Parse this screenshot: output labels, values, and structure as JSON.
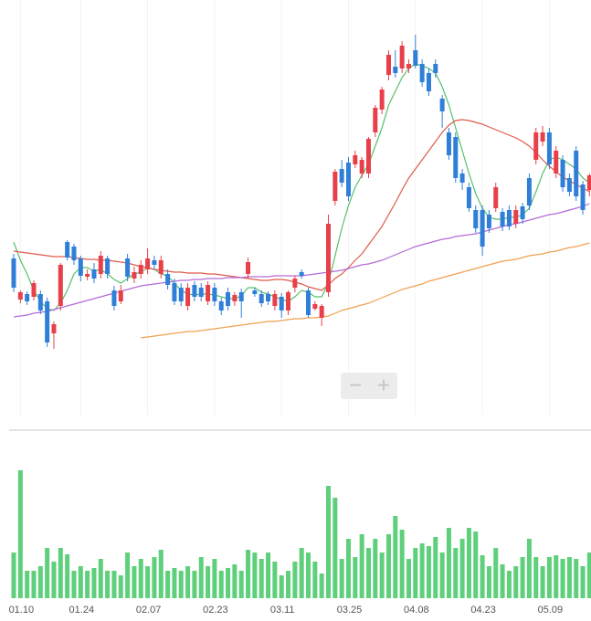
{
  "chart_data": {
    "type": "candlestick",
    "categories": [
      null,
      "01.10",
      null,
      null,
      null,
      null,
      null,
      null,
      null,
      null,
      "01.24",
      null,
      null,
      null,
      null,
      null,
      null,
      null,
      null,
      null,
      "02.07",
      null,
      null,
      null,
      null,
      null,
      null,
      null,
      null,
      null,
      "02.23",
      null,
      null,
      null,
      null,
      null,
      null,
      null,
      null,
      null,
      "03.11",
      null,
      null,
      null,
      null,
      null,
      null,
      null,
      null,
      null,
      "03.25",
      null,
      null,
      null,
      null,
      null,
      null,
      null,
      null,
      null,
      "04.08",
      null,
      null,
      null,
      null,
      null,
      null,
      null,
      null,
      null,
      "04.23",
      null,
      null,
      null,
      null,
      null,
      null,
      null,
      null,
      null,
      "05.09",
      null,
      null,
      null,
      null,
      null,
      null
    ],
    "open": [
      177,
      132,
      138,
      135,
      138,
      130,
      95,
      125,
      195,
      190,
      177,
      157,
      165,
      160,
      177,
      142,
      130,
      177,
      155,
      160,
      165,
      175,
      160,
      160,
      150,
      145,
      125,
      148,
      145,
      130,
      145,
      130,
      140,
      130,
      140,
      160,
      142,
      138,
      138,
      125,
      135,
      120,
      145,
      162,
      142,
      122,
      112,
      140,
      240,
      275,
      282,
      280,
      270,
      270,
      315,
      340,
      378,
      387,
      385,
      385,
      405,
      390,
      380,
      390,
      352,
      315,
      310,
      270,
      255,
      230,
      230,
      225,
      232,
      228,
      230,
      215,
      234,
      265,
      285,
      305,
      315,
      270,
      285,
      265,
      295,
      258,
      252
    ],
    "high": [
      182,
      142,
      141,
      153,
      142,
      134,
      108,
      172,
      197,
      193,
      180,
      165,
      172,
      185,
      180,
      147,
      148,
      182,
      168,
      175,
      188,
      180,
      180,
      165,
      155,
      150,
      150,
      152,
      150,
      152,
      150,
      134,
      145,
      140,
      144,
      178,
      145,
      142,
      141,
      142,
      139,
      142,
      158,
      165,
      145,
      130,
      127,
      225,
      275,
      285,
      288,
      295,
      288,
      310,
      345,
      365,
      405,
      405,
      415,
      395,
      422,
      395,
      385,
      395,
      356,
      320,
      315,
      275,
      260,
      235,
      235,
      230,
      260,
      232,
      235,
      235,
      238,
      270,
      320,
      322,
      320,
      300,
      290,
      270,
      300,
      262,
      270
    ],
    "low": [
      140,
      128,
      126,
      131,
      116,
      80,
      78,
      120,
      175,
      170,
      152,
      153,
      150,
      155,
      155,
      120,
      127,
      152,
      150,
      155,
      160,
      165,
      155,
      143,
      126,
      125,
      120,
      130,
      130,
      126,
      125,
      115,
      120,
      125,
      112,
      155,
      135,
      124,
      126,
      120,
      112,
      115,
      140,
      155,
      112,
      120,
      103,
      135,
      235,
      255,
      240,
      276,
      265,
      265,
      310,
      335,
      372,
      375,
      380,
      380,
      385,
      365,
      355,
      375,
      320,
      285,
      260,
      252,
      228,
      205,
      180,
      205,
      228,
      207,
      208,
      210,
      215,
      230,
      280,
      300,
      275,
      265,
      250,
      245,
      240,
      225,
      245
    ],
    "close": [
      145,
      140,
      130,
      150,
      120,
      85,
      105,
      170,
      178,
      175,
      158,
      160,
      155,
      180,
      160,
      125,
      142,
      157,
      162,
      170,
      177,
      170,
      175,
      148,
      130,
      130,
      145,
      135,
      135,
      148,
      130,
      120,
      125,
      137,
      130,
      173,
      138,
      128,
      130,
      138,
      120,
      140,
      155,
      158,
      115,
      127,
      125,
      215,
      272,
      260,
      245,
      290,
      285,
      308,
      342,
      362,
      400,
      380,
      410,
      390,
      388,
      370,
      360,
      380,
      338,
      290,
      265,
      260,
      232,
      210,
      190,
      210,
      255,
      212,
      212,
      230,
      220,
      235,
      315,
      315,
      280,
      295,
      255,
      250,
      245,
      230,
      268
    ],
    "up_color": "#e8404a",
    "down_color": "#2f7fd8",
    "ylim": [
      0,
      460
    ],
    "grid": true,
    "lines": [
      {
        "color": "#55c16b",
        "values": [
          195,
          175,
          160,
          142,
          130,
          122,
          120,
          128,
          142,
          160,
          167,
          167,
          163,
          165,
          160,
          154,
          150,
          155,
          160,
          162,
          167,
          165,
          160,
          158,
          150,
          142,
          138,
          137,
          138,
          138,
          137,
          135,
          133,
          133,
          136,
          145,
          145,
          140,
          138,
          135,
          132,
          130,
          135,
          142,
          140,
          135,
          135,
          150,
          180,
          210,
          235,
          255,
          268,
          280,
          300,
          320,
          345,
          360,
          375,
          385,
          390,
          388,
          385,
          380,
          365,
          345,
          320,
          295,
          270,
          248,
          232,
          222,
          220,
          220,
          222,
          222,
          225,
          232,
          250,
          270,
          285,
          288,
          285,
          280,
          275,
          265,
          260
        ]
      },
      {
        "color": "#e05a4a",
        "values": [
          185,
          184,
          183,
          182,
          181,
          180,
          179,
          179,
          179,
          178,
          177,
          176,
          176,
          175,
          175,
          174,
          173,
          172,
          170,
          168,
          167,
          165,
          164,
          163,
          162,
          162,
          161,
          161,
          161,
          160,
          160,
          159,
          158,
          157,
          156,
          155,
          154,
          153,
          153,
          154,
          154,
          153,
          151,
          149,
          146,
          144,
          142,
          148,
          155,
          160,
          167,
          175,
          182,
          192,
          202,
          212,
          225,
          238,
          252,
          265,
          275,
          285,
          295,
          305,
          315,
          323,
          328,
          329,
          328,
          326,
          324,
          321,
          318,
          315,
          312,
          309,
          305,
          300,
          293,
          285,
          278,
          272,
          266,
          262,
          258,
          254,
          250
        ]
      },
      {
        "color": "#b46bd8",
        "values": [
          113,
          114,
          115,
          117,
          118,
          119,
          121,
          123,
          125,
          127,
          129,
          131,
          133,
          135,
          137,
          139,
          141,
          143,
          145,
          147,
          148,
          149,
          150,
          151,
          152,
          153,
          153,
          154,
          154,
          155,
          155,
          155,
          156,
          156,
          156,
          157,
          157,
          157,
          157,
          158,
          158,
          158,
          158,
          158,
          159,
          160,
          161,
          162,
          163,
          164,
          166,
          168,
          170,
          171,
          173,
          175,
          178,
          181,
          184,
          187,
          190,
          192,
          194,
          196,
          198,
          199,
          201,
          202,
          203,
          204,
          206,
          208,
          210,
          212,
          214,
          215,
          217,
          219,
          221,
          223,
          225,
          226,
          228,
          230,
          232,
          234,
          237
        ]
      },
      {
        "color": "#f0a050",
        "values": [
          null,
          null,
          null,
          null,
          null,
          null,
          null,
          null,
          null,
          null,
          null,
          null,
          null,
          null,
          null,
          null,
          null,
          null,
          null,
          90,
          91,
          92,
          93,
          94,
          95,
          96,
          97,
          97,
          98,
          99,
          100,
          101,
          102,
          103,
          104,
          105,
          106,
          107,
          108,
          108,
          109,
          110,
          111,
          111,
          112,
          112,
          113,
          114,
          117,
          120,
          122,
          124,
          126,
          128,
          131,
          134,
          137,
          140,
          143,
          145,
          147,
          149,
          152,
          154,
          156,
          158,
          160,
          162,
          164,
          166,
          168,
          170,
          172,
          174,
          175,
          176,
          178,
          180,
          181,
          182,
          184,
          185,
          187,
          189,
          190,
          192,
          194
        ]
      }
    ],
    "volume": {
      "color": "#5ecf7a",
      "ylim": [
        0,
        185
      ],
      "values": [
        50,
        140,
        30,
        30,
        35,
        55,
        40,
        55,
        48,
        30,
        35,
        30,
        33,
        43,
        30,
        30,
        25,
        50,
        35,
        43,
        35,
        45,
        53,
        30,
        33,
        30,
        35,
        30,
        45,
        35,
        43,
        30,
        33,
        37,
        30,
        53,
        50,
        43,
        50,
        40,
        25,
        30,
        40,
        55,
        50,
        40,
        27,
        123,
        110,
        43,
        65,
        45,
        70,
        55,
        65,
        50,
        70,
        90,
        75,
        43,
        55,
        60,
        57,
        67,
        50,
        77,
        55,
        65,
        77,
        73,
        47,
        35,
        55,
        37,
        30,
        35,
        45,
        65,
        45,
        35,
        45,
        47,
        43,
        45,
        43,
        35,
        50
      ]
    },
    "zoom": {
      "out": "−",
      "in": "+"
    }
  }
}
